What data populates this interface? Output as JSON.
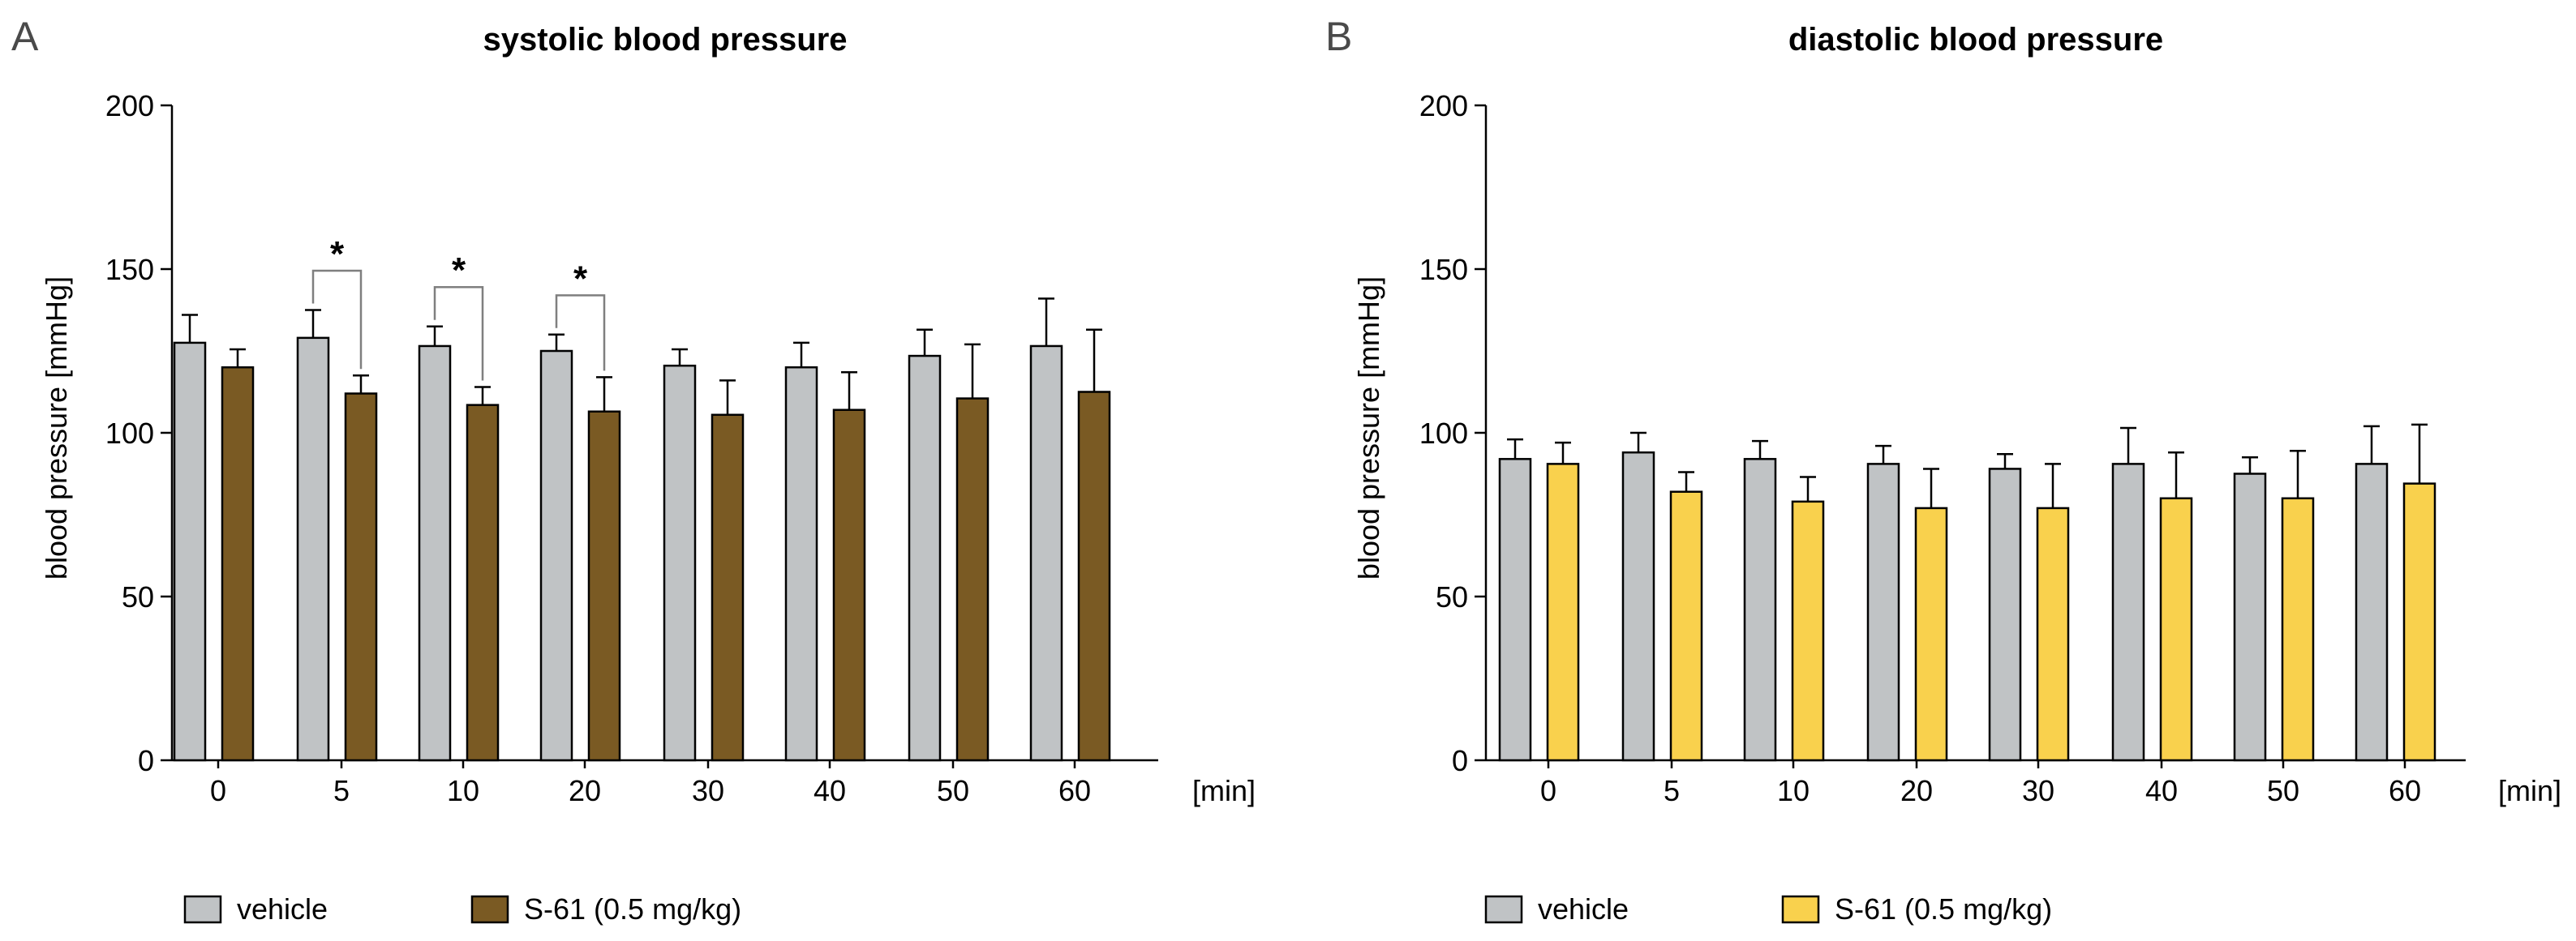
{
  "chart_data": [
    {
      "type": "bar",
      "panel_label": "A",
      "title": "systolic blood pressure",
      "xlabel": "[min]",
      "ylabel": "blood pressure [mmHg]",
      "categories": [
        "0",
        "5",
        "10",
        "20",
        "30",
        "40",
        "50",
        "60"
      ],
      "ylim": [
        0,
        200
      ],
      "yticks": [
        0,
        50,
        100,
        150,
        200
      ],
      "series": [
        {
          "name": "vehicle",
          "color": "#c0c3c5",
          "values": [
            127.5,
            129,
            126.5,
            125,
            120.5,
            120,
            123.5,
            126.5
          ],
          "errors": [
            8.5,
            8.5,
            6,
            5,
            5,
            7.5,
            8,
            14.5
          ]
        },
        {
          "name": "S-61 (0.5 mg/kg)",
          "color": "#7a5a23",
          "values": [
            120,
            112,
            108.5,
            106.5,
            105.5,
            107,
            110.5,
            112.5
          ],
          "errors": [
            5.5,
            5.5,
            5.5,
            10.5,
            10.5,
            11.5,
            16.5,
            19
          ]
        }
      ],
      "significance": [
        {
          "category": "5",
          "label": "*"
        },
        {
          "category": "10",
          "label": "*"
        },
        {
          "category": "20",
          "label": "*"
        }
      ],
      "legend_position": "bottom-left"
    },
    {
      "type": "bar",
      "panel_label": "B",
      "title": "diastolic blood pressure",
      "xlabel": "[min]",
      "ylabel": "blood pressure [mmHg]",
      "categories": [
        "0",
        "5",
        "10",
        "20",
        "30",
        "40",
        "50",
        "60"
      ],
      "ylim": [
        0,
        200
      ],
      "yticks": [
        0,
        50,
        100,
        150,
        200
      ],
      "series": [
        {
          "name": "vehicle",
          "color": "#c0c3c5",
          "values": [
            92,
            94,
            92,
            90.5,
            89,
            90.5,
            87.5,
            90.5
          ],
          "errors": [
            6,
            6,
            5.5,
            5.5,
            4.5,
            11,
            5,
            11.5
          ]
        },
        {
          "name": "S-61 (0.5 mg/kg)",
          "color": "#f9d14d",
          "values": [
            90.5,
            82,
            79,
            77,
            77,
            80,
            80,
            84.5
          ],
          "errors": [
            6.5,
            6,
            7.5,
            12,
            13.5,
            14,
            14.5,
            18
          ]
        }
      ],
      "significance": [],
      "legend_position": "bottom-left"
    }
  ]
}
